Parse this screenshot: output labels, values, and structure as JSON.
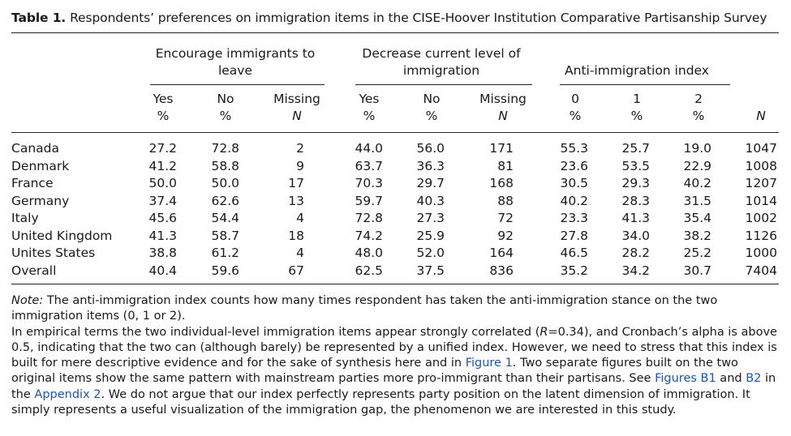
{
  "caption": {
    "label": "Table 1.",
    "text": "Respondents’ preferences on immigration items in the CISE-Hoover Institution Comparative Partisanship Survey"
  },
  "groups": [
    {
      "line1": "Encourage immigrants to",
      "line2": "leave"
    },
    {
      "line1": "Decrease current level of",
      "line2": "immigration"
    },
    {
      "line1": "Anti-immigration index",
      "line2": ""
    }
  ],
  "col_heads": {
    "top": [
      "Yes",
      "No",
      "Missing",
      "Yes",
      "No",
      "Missing",
      "0",
      "1",
      "2",
      ""
    ],
    "bottom": [
      "%",
      "%",
      "N",
      "%",
      "%",
      "N",
      "%",
      "%",
      "%",
      "N"
    ]
  },
  "rows": [
    {
      "country": "Canada",
      "values": [
        "27.2",
        "72.8",
        "2",
        "44.0",
        "56.0",
        "171",
        "55.3",
        "25.7",
        "19.0",
        "1047"
      ]
    },
    {
      "country": "Denmark",
      "values": [
        "41.2",
        "58.8",
        "9",
        "63.7",
        "36.3",
        "81",
        "23.6",
        "53.5",
        "22.9",
        "1008"
      ]
    },
    {
      "country": "France",
      "values": [
        "50.0",
        "50.0",
        "17",
        "70.3",
        "29.7",
        "168",
        "30.5",
        "29.3",
        "40.2",
        "1207"
      ]
    },
    {
      "country": "Germany",
      "values": [
        "37.4",
        "62.6",
        "13",
        "59.7",
        "40.3",
        "88",
        "40.2",
        "28.3",
        "31.5",
        "1014"
      ]
    },
    {
      "country": "Italy",
      "values": [
        "45.6",
        "54.4",
        "4",
        "72.8",
        "27.3",
        "72",
        "23.3",
        "41.3",
        "35.4",
        "1002"
      ]
    },
    {
      "country": "United Kingdom",
      "values": [
        "41.3",
        "58.7",
        "18",
        "74.2",
        "25.9",
        "92",
        "27.8",
        "34.0",
        "38.2",
        "1126"
      ]
    },
    {
      "country": "Unites States",
      "values": [
        "38.8",
        "61.2",
        "4",
        "48.0",
        "52.0",
        "164",
        "46.5",
        "28.2",
        "25.2",
        "1000"
      ]
    },
    {
      "country": "Overall",
      "values": [
        "40.4",
        "59.6",
        "67",
        "62.5",
        "37.5",
        "836",
        "35.2",
        "34.2",
        "30.7",
        "7404"
      ]
    }
  ],
  "notes": {
    "note_label": "Note:",
    "note_text": " The anti-immigration index counts how many times respondent has taken the anti-immigration stance on the two immigration items (0, 1 or 2).",
    "p2_a": "In empirical terms the two individual-level immigration items appear strongly correlated (",
    "p2_r": "R",
    "p2_b": "=0.34), and Cronbach’s alpha is above 0.5, indicating that the two can (although barely) be represented by a unified index. However, we need to stress that this index is built for mere descriptive evidence and for the sake of synthesis here and in ",
    "link_fig1": "Figure 1",
    "p2_c": ". Two separate figures built on the two original items show the same pattern with mainstream parties more pro-immigrant than their partisans. See ",
    "link_b1": "Figures B1",
    "p2_d": " and ",
    "link_b2": "B2",
    "p2_e": " in the ",
    "link_appendix": "Appendix 2",
    "p2_f": ". We do not argue that our index perfectly represents party position on the latent dimension of immigration. It simply represents a useful visualization of the immigration gap, the phenomenon we are interested in this study."
  }
}
